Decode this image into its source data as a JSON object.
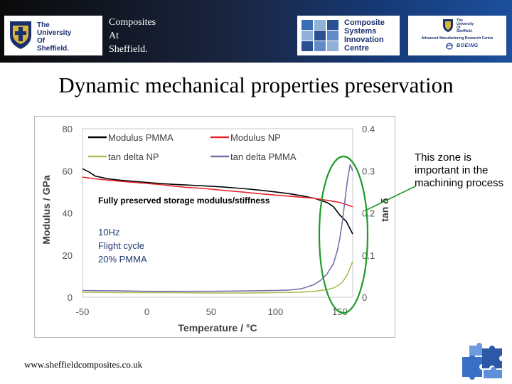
{
  "header": {
    "university": [
      "The",
      "University",
      "Of",
      "Sheffield."
    ],
    "title_lines": [
      "Composites",
      "At",
      "Sheffield."
    ],
    "csic_name": [
      "Composite",
      "Systems",
      "Innovation",
      "Centre"
    ],
    "amrc_university": [
      "The",
      "University",
      "Of",
      "Sheffield."
    ],
    "amrc_name": "Advanced Manufacturing Research Centre",
    "amrc_partner": "BOEING"
  },
  "slide_title": "Dynamic mechanical properties preservation",
  "side_note": "This zone is important in the machining process",
  "footer_url": "www.sheffieldcomposites.co.uk",
  "colors": {
    "modulus_pmma": "#000000",
    "modulus_np": "#e8252a",
    "tan_delta_np": "#a7c25a",
    "tan_delta_pmma": "#7a6fa8",
    "highlight": "#1e9a2b"
  },
  "chart_data": {
    "type": "line",
    "xlabel": "Temperature / °C",
    "ylabel": "Modulus / GPa",
    "y2label": "tan δ",
    "xlim": [
      -50,
      160
    ],
    "ylim": [
      0,
      80
    ],
    "y2lim": [
      0,
      0.4
    ],
    "xticks": [
      "-50",
      "0",
      "50",
      "100",
      "150"
    ],
    "yticks": [
      "0",
      "20",
      "40",
      "60",
      "80"
    ],
    "y2ticks": [
      "0",
      "0.1",
      "0.2",
      "0.3",
      "0.4"
    ],
    "legend": [
      "Modulus PMMA",
      "Modulus NP",
      "tan delta NP",
      "tan delta PMMA"
    ],
    "annotations": [
      "Fully preserved storage modulus/stiffness",
      "10Hz",
      "Flight cycle",
      "20% PMMA"
    ],
    "series": [
      {
        "name": "Modulus PMMA",
        "axis": "left",
        "x": [
          -50,
          -45,
          -40,
          -30,
          -20,
          -10,
          0,
          10,
          20,
          30,
          40,
          50,
          60,
          70,
          80,
          90,
          100,
          110,
          120,
          130,
          140,
          145,
          150,
          155,
          160
        ],
        "y": [
          61,
          59.5,
          57.5,
          56.2,
          55.5,
          55,
          54.5,
          54,
          53.6,
          53.3,
          53,
          52.7,
          52.3,
          51.8,
          51.3,
          50.7,
          50,
          49.2,
          48.2,
          47,
          45,
          43,
          39,
          36,
          30
        ]
      },
      {
        "name": "Modulus NP",
        "axis": "left",
        "x": [
          -50,
          -40,
          -30,
          -20,
          -10,
          0,
          10,
          20,
          30,
          40,
          50,
          60,
          70,
          80,
          90,
          100,
          110,
          120,
          130,
          140,
          145,
          150,
          155,
          160
        ],
        "y": [
          57,
          56.2,
          55.6,
          55,
          54.5,
          54,
          53.5,
          52.8,
          52.2,
          51.8,
          51.3,
          50.7,
          50.2,
          49.6,
          49,
          48.5,
          48,
          47.5,
          47,
          46,
          45.5,
          45,
          44,
          43
        ]
      },
      {
        "name": "tan delta NP",
        "axis": "right",
        "x": [
          -50,
          -20,
          0,
          20,
          50,
          80,
          100,
          120,
          130,
          140,
          145,
          150,
          153,
          156,
          160
        ],
        "y": [
          0.012,
          0.011,
          0.011,
          0.011,
          0.01,
          0.01,
          0.011,
          0.012,
          0.014,
          0.018,
          0.022,
          0.03,
          0.04,
          0.055,
          0.085
        ]
      },
      {
        "name": "tan delta PMMA",
        "axis": "right",
        "x": [
          -50,
          -20,
          0,
          20,
          50,
          80,
          100,
          110,
          120,
          130,
          135,
          140,
          145,
          148,
          150,
          152,
          154,
          156,
          158,
          160
        ],
        "y": [
          0.016,
          0.015,
          0.014,
          0.014,
          0.014,
          0.015,
          0.016,
          0.017,
          0.02,
          0.03,
          0.04,
          0.055,
          0.08,
          0.11,
          0.14,
          0.18,
          0.23,
          0.28,
          0.315,
          0.3
        ]
      }
    ]
  }
}
